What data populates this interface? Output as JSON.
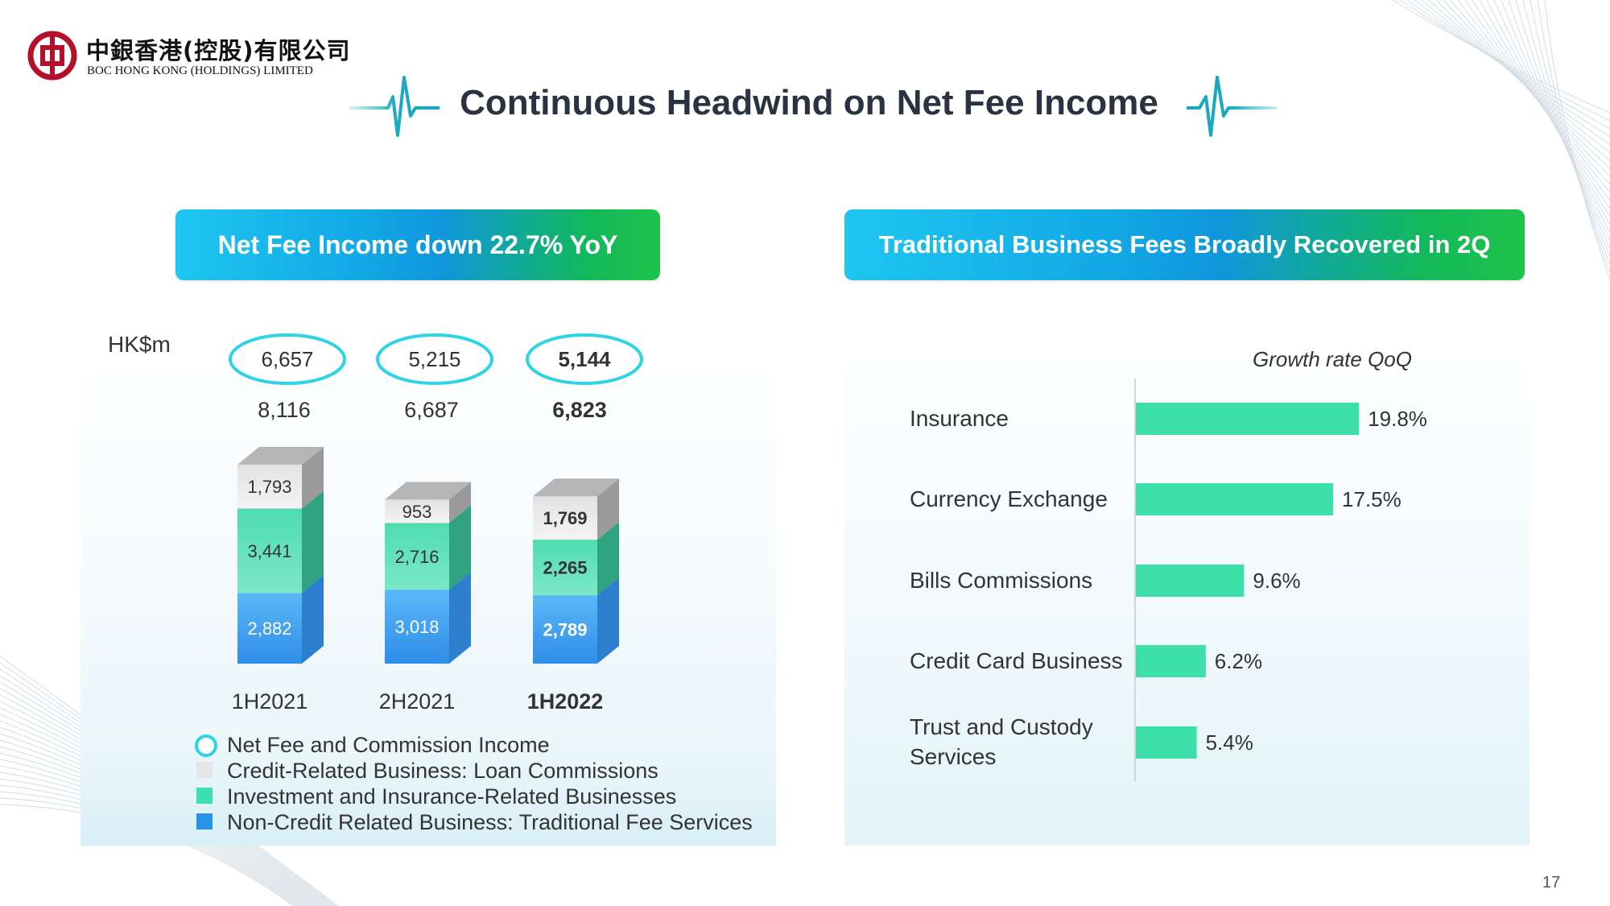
{
  "logo": {
    "chinese_name": "中銀香港(控股)有限公司",
    "english_name": "BOC HONG KONG (HOLDINGS) LIMITED"
  },
  "page_title": "Continuous Headwind on Net Fee Income",
  "left_section": {
    "banner": "Net Fee Income down 22.7% YoY",
    "unit": "HK$m"
  },
  "right_section": {
    "banner": "Traditional Business Fees Broadly Recovered in 2Q",
    "subtitle": "Growth rate QoQ"
  },
  "legend": {
    "items": [
      {
        "label": "Net Fee and Commission Income",
        "kind": "ring",
        "color": "#2ed3e6"
      },
      {
        "label": "Credit-Related Business: Loan Commissions",
        "kind": "box",
        "color": "#e6e6e6"
      },
      {
        "label": "Investment and Insurance-Related Businesses",
        "kind": "box",
        "color": "#3ddfb0"
      },
      {
        "label": "Non-Credit Related Business: Traditional Fee Services",
        "kind": "box",
        "color": "#2693e8"
      }
    ]
  },
  "page_number": "17",
  "colors": {
    "accent_cyan": "#2ed3e6",
    "bar_green": "#3ddfa9",
    "stack_blue": "#46a8f5",
    "stack_teal": "#5de0b7",
    "stack_grey": "#eeeeee",
    "brand_red": "#b5102b"
  },
  "chart_data": [
    {
      "type": "bar",
      "stacked": true,
      "categories": [
        "1H2021",
        "2H2021",
        "1H2022"
      ],
      "highlight_category": "1H2022",
      "series": [
        {
          "name": "Non-Credit Related Business: Traditional Fee Services",
          "values": [
            2882,
            3018,
            2789
          ],
          "labels": [
            "2,882",
            "3,018",
            "2,789"
          ],
          "color": "#46a8f5"
        },
        {
          "name": "Investment and Insurance-Related Businesses",
          "values": [
            3441,
            2716,
            2265
          ],
          "labels": [
            "3,441",
            "2,716",
            "2,265"
          ],
          "color": "#5de0b7"
        },
        {
          "name": "Credit-Related Business: Loan Commissions",
          "values": [
            1793,
            953,
            1769
          ],
          "labels": [
            "1,793",
            "953",
            "1,769"
          ],
          "color": "#eeeeee"
        }
      ],
      "totals": [
        8116,
        6687,
        6823
      ],
      "total_labels": [
        "8,116",
        "6,687",
        "6,823"
      ],
      "net_fee_income": [
        6657,
        5215,
        5144
      ],
      "net_fee_income_labels": [
        "6,657",
        "5,215",
        "5,144"
      ],
      "ylabel": "HK$m"
    },
    {
      "type": "bar",
      "orientation": "horizontal",
      "title": "Growth rate QoQ",
      "categories": [
        "Insurance",
        "Currency Exchange",
        "Bills Commissions",
        "Credit Card Business",
        "Trust and Custody Services"
      ],
      "category_lines": [
        [
          "Insurance"
        ],
        [
          "Currency Exchange"
        ],
        [
          "Bills Commissions"
        ],
        [
          "Credit Card Business"
        ],
        [
          "Trust and Custody",
          "Services"
        ]
      ],
      "values": [
        19.8,
        17.5,
        9.6,
        6.2,
        5.4
      ],
      "value_labels": [
        "19.8%",
        "17.5%",
        "9.6%",
        "6.2%",
        "5.4%"
      ],
      "unit": "%",
      "color": "#3ddfa9"
    }
  ]
}
